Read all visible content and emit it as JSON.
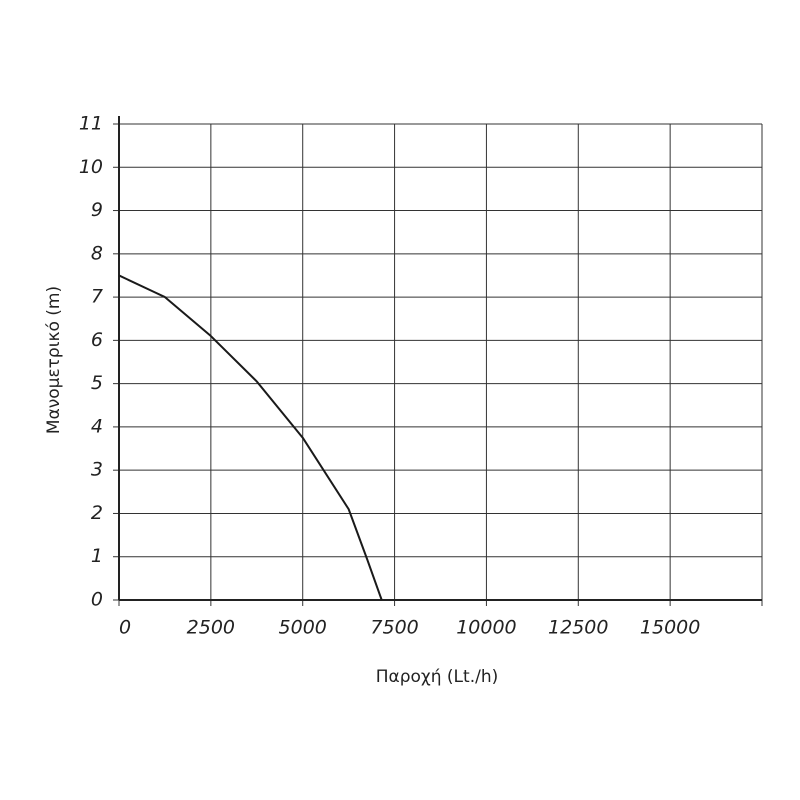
{
  "chart_data": {
    "type": "line",
    "x_label": "Παροχή (Lt./h)",
    "y_label": "Μανομετρικό  (m)",
    "series": [
      {
        "color": "#1a1a1a",
        "x": [
          0,
          1000,
          1250,
          2500,
          3750,
          5000,
          6250,
          6750,
          7150
        ],
        "values": [
          7.5,
          7.1,
          7.0,
          6.1,
          5.05,
          3.75,
          2.1,
          0.95,
          0
        ]
      }
    ],
    "xlim": [
      0,
      17500
    ],
    "xticks": [
      0,
      2500,
      5000,
      7500,
      10000,
      12500,
      15000
    ],
    "ylim": [
      0,
      11
    ],
    "yticks": [
      0,
      1,
      2,
      3,
      4,
      5,
      6,
      7,
      8,
      9,
      10,
      11
    ],
    "grid": true
  }
}
